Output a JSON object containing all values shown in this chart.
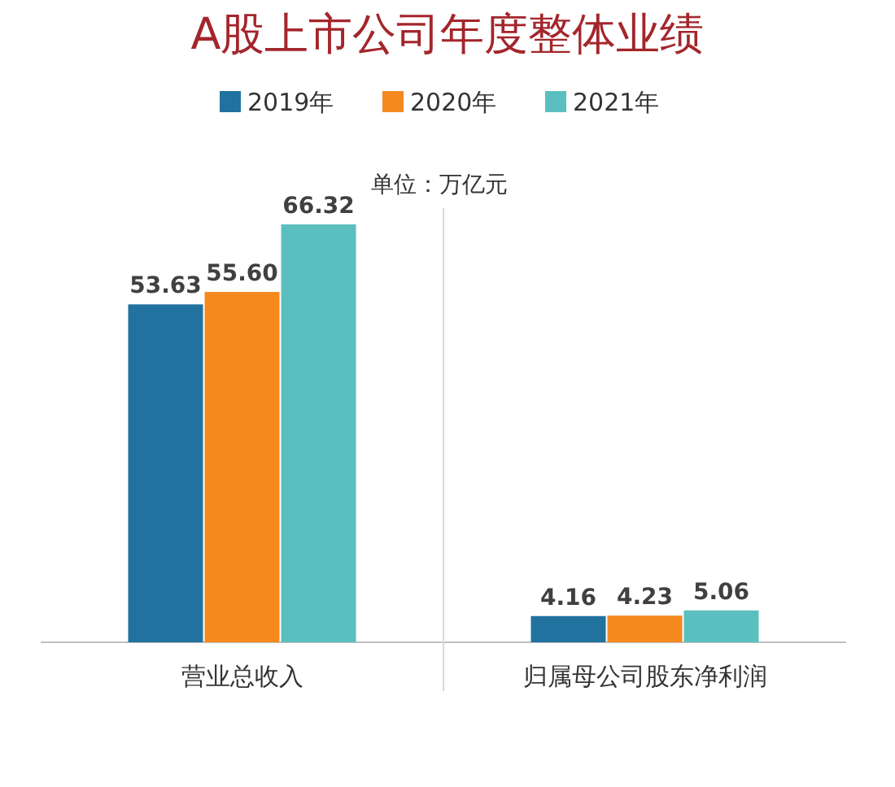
{
  "chart_data": {
    "type": "bar",
    "title": "A股上市公司年度整体业绩",
    "subtitle": "单位：万亿元",
    "categories": [
      "营业总收入",
      "归属母公司股东净利润"
    ],
    "series": [
      {
        "name": "2019年",
        "color": "#21729f",
        "values": [
          53.63,
          4.16
        ],
        "value_labels": [
          "53.63",
          "4.16"
        ]
      },
      {
        "name": "2020年",
        "color": "#f5891f",
        "values": [
          55.6,
          4.23
        ],
        "value_labels": [
          "55.60",
          "4.23"
        ]
      },
      {
        "name": "2021年",
        "color": "#5bbfbf",
        "values": [
          66.32,
          5.06
        ],
        "value_labels": [
          "66.32",
          "5.06"
        ]
      }
    ],
    "legend": "top"
  }
}
